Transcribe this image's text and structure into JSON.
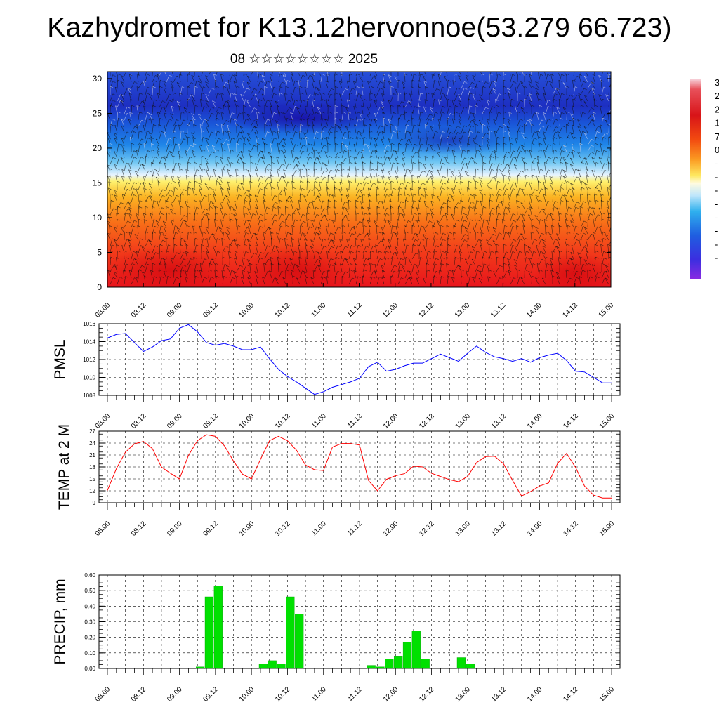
{
  "title": "Kazhydromet for K13.12hervonnoe(53.279 66.723)",
  "subtitle": "08 ☆☆☆☆☆☆☆☆ 2025",
  "colors": {
    "pmsl_line": "#0000ff",
    "temp_line": "#ff0000",
    "precip_bar": "#00e000",
    "precip_bar_edge": "#00a000",
    "grid": "#000000"
  },
  "chart_data": [
    {
      "type": "heatmap",
      "name": "cross-section",
      "x_ticks": [
        "08.00",
        "08.12",
        "09.00",
        "09.12",
        "10.00",
        "10.12",
        "11.00",
        "11.12",
        "12.00",
        "12.12",
        "13.00",
        "13.12",
        "14.00",
        "14.12",
        "15.00"
      ],
      "y_ticks": [
        "0",
        "5",
        "10",
        "15",
        "20",
        "25",
        "30"
      ],
      "ylim": [
        0,
        31
      ],
      "colorbar_labels": [
        "3",
        "2",
        "2",
        "1",
        "7",
        "0",
        "-",
        "-",
        "-",
        "-",
        "-",
        "-",
        "-",
        "-"
      ],
      "has_wind_barbs": true
    },
    {
      "type": "line",
      "name": "pmsl",
      "ylabel": "PMSL",
      "ylim": [
        1008,
        1016
      ],
      "y_ticks": [
        "1008",
        "1010",
        "1012",
        "1014",
        "1016"
      ],
      "x_ticks": [
        "08.00",
        "08.12",
        "09.00",
        "09.12",
        "10.00",
        "10.12",
        "11.00",
        "11.12",
        "12.00",
        "12.12",
        "13.00",
        "13.12",
        "14.00",
        "14.12",
        "15.00"
      ],
      "x_hours": [
        0,
        3,
        6,
        9,
        12,
        15,
        18,
        21,
        24,
        27,
        30,
        33,
        36,
        39,
        42,
        45,
        48,
        51,
        54,
        57,
        60,
        63,
        66,
        69,
        72,
        75,
        78,
        81,
        84,
        87,
        90,
        93,
        96,
        99,
        102,
        105,
        108,
        111,
        114,
        117,
        120,
        123,
        126,
        129,
        132,
        135,
        138,
        141,
        144,
        147,
        150,
        153,
        156,
        159,
        162,
        165,
        168
      ],
      "values": [
        1014.4,
        1014.8,
        1014.9,
        1013.9,
        1012.9,
        1013.4,
        1014.1,
        1014.3,
        1015.5,
        1015.9,
        1015.1,
        1013.9,
        1013.6,
        1013.8,
        1013.5,
        1013.1,
        1013.1,
        1013.4,
        1012.1,
        1010.9,
        1010.1,
        1009.5,
        1008.8,
        1008.1,
        1008.4,
        1008.9,
        1009.2,
        1009.5,
        1009.9,
        1011.2,
        1011.7,
        1010.7,
        1010.9,
        1011.3,
        1011.6,
        1011.6,
        1012.1,
        1012.6,
        1012.2,
        1011.8,
        1012.7,
        1013.5,
        1012.8,
        1012.3,
        1012.1,
        1011.8,
        1012.1,
        1011.7,
        1012.2,
        1012.5,
        1012.7,
        1011.9,
        1010.7,
        1010.6,
        1010.0,
        1009.4,
        1009.4
      ]
    },
    {
      "type": "line",
      "name": "temp",
      "ylabel": "TEMP at 2 M",
      "ylim": [
        9,
        27
      ],
      "y_ticks": [
        "9",
        "12",
        "15",
        "18",
        "21",
        "24",
        "27"
      ],
      "x_ticks": [
        "08.00",
        "08.12",
        "09.00",
        "09.12",
        "10.00",
        "10.12",
        "11.00",
        "11.12",
        "12.00",
        "12.12",
        "13.00",
        "13.12",
        "14.00",
        "14.12",
        "15.00"
      ],
      "x_hours": [
        0,
        3,
        6,
        9,
        12,
        15,
        18,
        21,
        24,
        27,
        30,
        33,
        36,
        39,
        42,
        45,
        48,
        51,
        54,
        57,
        60,
        63,
        66,
        69,
        72,
        75,
        78,
        81,
        84,
        87,
        90,
        93,
        96,
        99,
        102,
        105,
        108,
        111,
        114,
        117,
        120,
        123,
        126,
        129,
        132,
        135,
        138,
        141,
        144,
        147,
        150,
        153,
        156,
        159,
        162,
        165,
        168
      ],
      "values": [
        12.1,
        17.6,
        21.7,
        23.8,
        24.4,
        22.6,
        18.0,
        16.4,
        15.0,
        20.9,
        24.6,
        26.1,
        25.7,
        23.3,
        19.5,
        16.2,
        15.0,
        19.9,
        24.6,
        25.7,
        24.6,
        22.2,
        18.5,
        17.3,
        17.1,
        23.0,
        23.9,
        23.9,
        23.5,
        14.6,
        12.0,
        14.9,
        15.8,
        16.3,
        18.2,
        18.0,
        16.4,
        15.6,
        14.8,
        14.3,
        15.6,
        19.1,
        20.6,
        20.7,
        18.8,
        14.6,
        10.7,
        11.8,
        13.2,
        14.0,
        18.9,
        21.4,
        17.9,
        13.2,
        10.9,
        10.2,
        10.2
      ]
    },
    {
      "type": "bar",
      "name": "precip",
      "ylabel": "PRECIP, mm",
      "ylim": [
        0,
        0.6
      ],
      "y_ticks": [
        "0.00",
        "0.10",
        "0.20",
        "0.30",
        "0.40",
        "0.50",
        "0.60"
      ],
      "x_ticks": [
        "08.00",
        "08.12",
        "09.00",
        "09.12",
        "10.00",
        "10.12",
        "11.00",
        "11.12",
        "12.00",
        "12.12",
        "13.00",
        "13.12",
        "14.00",
        "14.12",
        "15.00"
      ],
      "x_hours": [
        30,
        33,
        36,
        51,
        54,
        57,
        60,
        63,
        66,
        87,
        90,
        93,
        96,
        99,
        102,
        105,
        108,
        111,
        117,
        120
      ],
      "values": [
        0.01,
        0.46,
        0.53,
        0.03,
        0.05,
        0.03,
        0.46,
        0.35,
        0.0,
        0.02,
        0.01,
        0.06,
        0.08,
        0.17,
        0.24,
        0.06,
        0.0,
        0.0,
        0.07,
        0.03
      ]
    }
  ]
}
